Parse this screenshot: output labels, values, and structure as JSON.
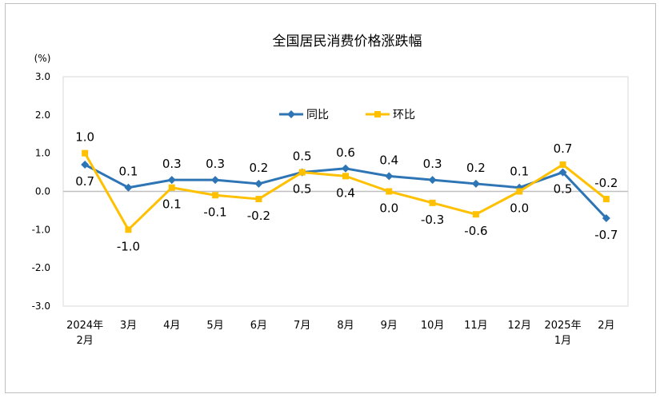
{
  "chart_data": {
    "type": "line",
    "title": "全国居民消费价格涨跌幅",
    "ylabel": "(%)",
    "xlabel": "",
    "ylim": [
      -3.0,
      3.0
    ],
    "yticks": [
      "3.0",
      "2.0",
      "1.0",
      "0.0",
      "-1.0",
      "-2.0",
      "-3.0"
    ],
    "categories": [
      [
        "2024年",
        "2月"
      ],
      [
        "3月"
      ],
      [
        "4月"
      ],
      [
        "5月"
      ],
      [
        "6月"
      ],
      [
        "7月"
      ],
      [
        "8月"
      ],
      [
        "9月"
      ],
      [
        "10月"
      ],
      [
        "11月"
      ],
      [
        "12月"
      ],
      [
        "2025年",
        "1月"
      ],
      [
        "2月"
      ]
    ],
    "legend_position": "top-center",
    "grid": false,
    "series": [
      {
        "name": "同比",
        "color": "#2e75b6",
        "marker": "diamond",
        "values": [
          0.7,
          0.1,
          0.3,
          0.3,
          0.2,
          0.5,
          0.6,
          0.4,
          0.3,
          0.2,
          0.1,
          0.5,
          -0.7
        ],
        "labels": [
          "0.7",
          "0.1",
          "0.3",
          "0.3",
          "0.2",
          "0.5",
          "0.6",
          "0.4",
          "0.3",
          "0.2",
          "0.1",
          "0.5",
          "-0.7"
        ]
      },
      {
        "name": "环比",
        "color": "#ffc000",
        "marker": "square",
        "values": [
          1.0,
          -1.0,
          0.1,
          -0.1,
          -0.2,
          0.5,
          0.4,
          0.0,
          -0.3,
          -0.6,
          0.0,
          0.7,
          -0.2
        ],
        "labels": [
          "1.0",
          "-1.0",
          "0.1",
          "-0.1",
          "-0.2",
          "0.5",
          "0.4",
          "0.0",
          "-0.3",
          "-0.6",
          "0.0",
          "0.7",
          "-0.2"
        ]
      }
    ]
  }
}
